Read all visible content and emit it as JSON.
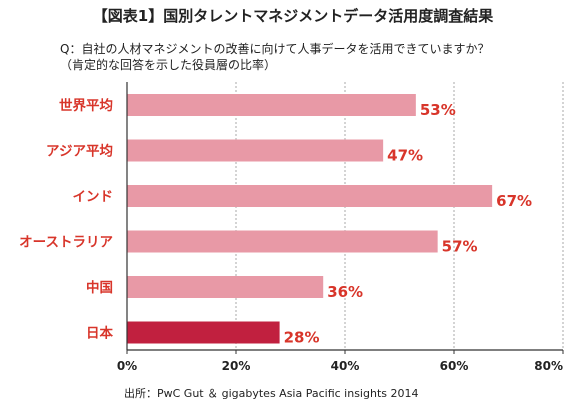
{
  "title": "【図表1】国別タレントマネジメントデータ活用度調査結果",
  "question_line1": "Q：自社の人材マネジメントの改善に向けて人事データを活用できていますか？",
  "question_line2": "（肯定的な回答を示した役員層の比率）",
  "source": "出所：PwC Gut ＆ gigabytes Asia Pacific insights 2014",
  "chart_data": {
    "type": "bar",
    "orientation": "horizontal",
    "categories": [
      "世界平均",
      "アジア平均",
      "インド",
      "オーストラリア",
      "中国",
      "日本"
    ],
    "values": [
      53,
      47,
      67,
      57,
      36,
      28
    ],
    "value_labels": [
      "53%",
      "47%",
      "67%",
      "57%",
      "36%",
      "28%"
    ],
    "highlight_category": "日本",
    "xlim": [
      0,
      80
    ],
    "xticks": [
      0,
      20,
      40,
      60,
      80
    ],
    "xtick_labels": [
      "0%",
      "20%",
      "40%",
      "60%",
      "80%"
    ],
    "grid": "vertical-dashed",
    "colors": {
      "bar": "#e899a6",
      "highlight_bar": "#c1203f",
      "label": "#d8352a",
      "grid": "#aaaaaa",
      "axis": "#333333"
    }
  }
}
